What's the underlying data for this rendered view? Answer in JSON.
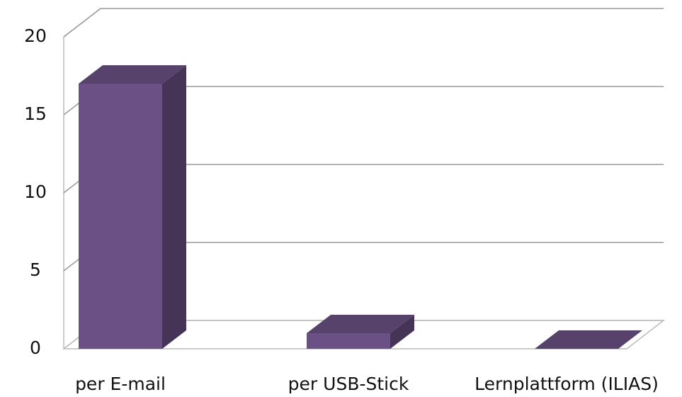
{
  "chart_data": {
    "type": "bar3d",
    "categories": [
      "per E-mail",
      "per USB-Stick",
      "Lernplattform (ILIAS)"
    ],
    "values": [
      17,
      1,
      0
    ],
    "color": "#6a5084",
    "ylim": [
      0,
      20
    ],
    "yticks": [
      0,
      5,
      10,
      15,
      20
    ],
    "grid": true
  }
}
